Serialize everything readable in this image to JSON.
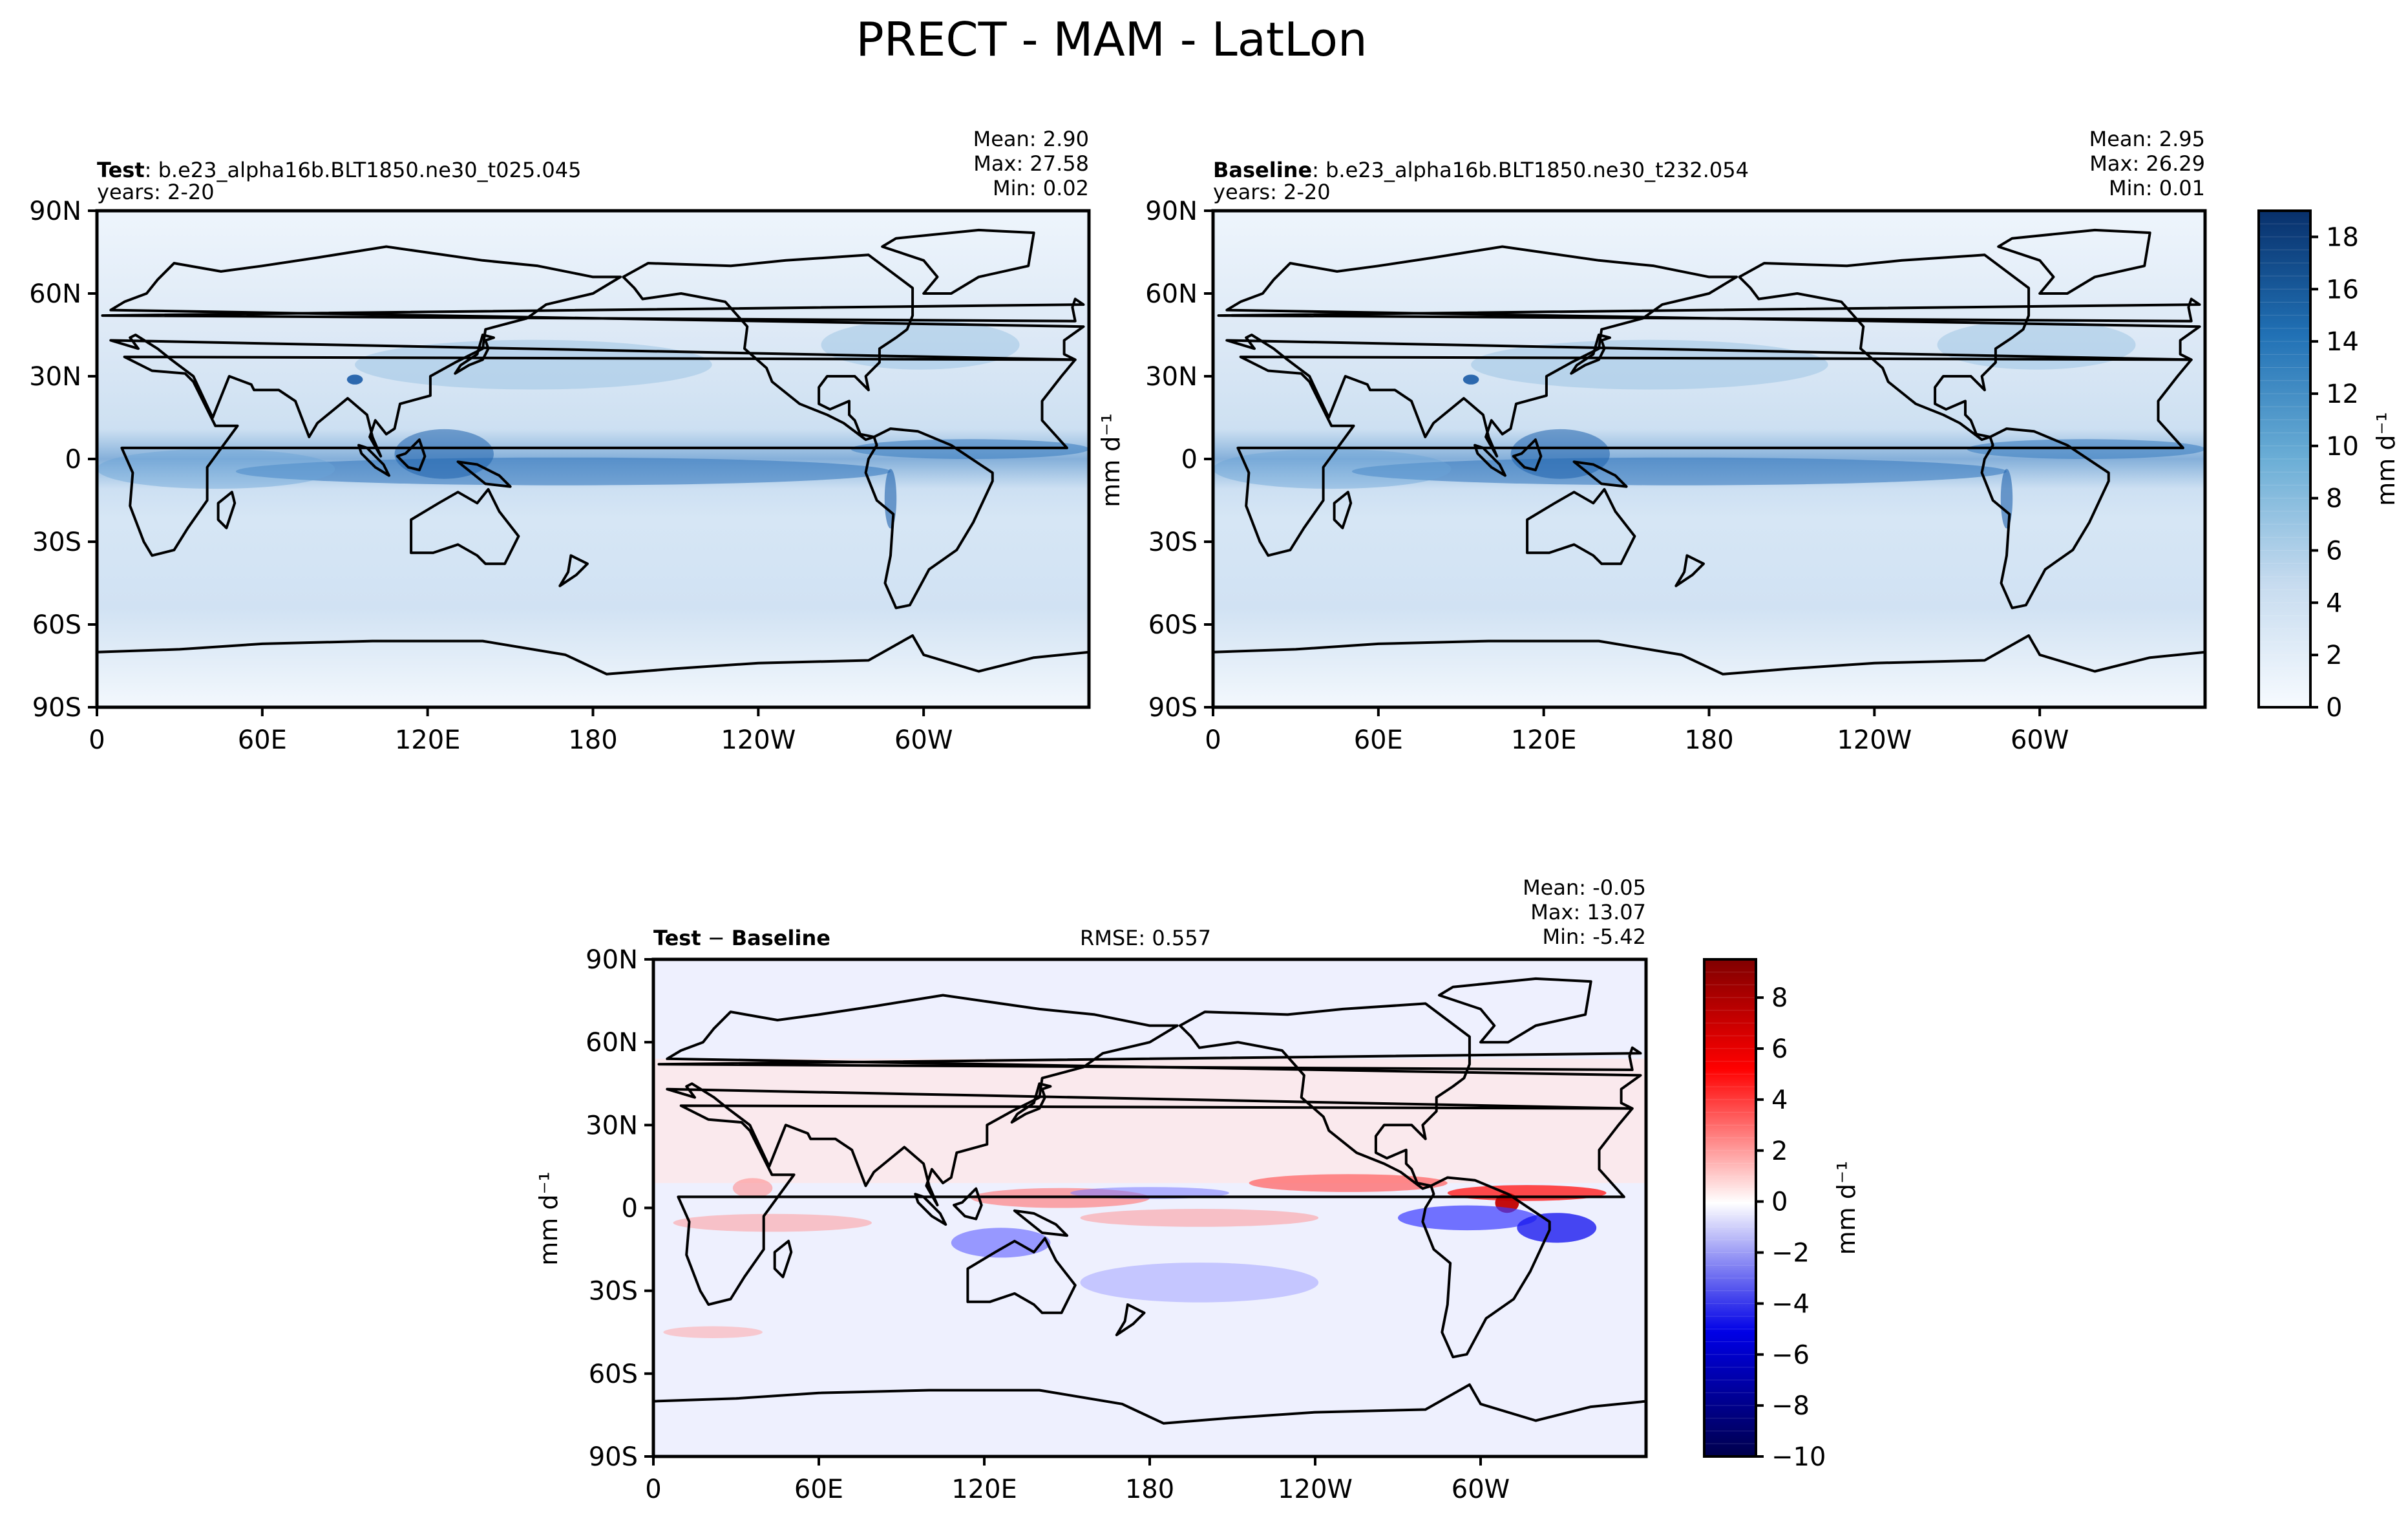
{
  "title": "PRECT - MAM - LatLon",
  "chart_data": [
    {
      "type": "heatmap",
      "panel": "test",
      "label_bold": "Test",
      "label_rest": ": b.e23_alpha16b.BLT1850.ne30_t025.045",
      "years": "years: 2-20",
      "stats": {
        "mean": "Mean:  2.90",
        "max": "Max: 27.58",
        "min": "Min:  0.02"
      },
      "x_ticks": [
        "0",
        "60E",
        "120E",
        "180",
        "120W",
        "60W"
      ],
      "y_ticks": [
        "90N",
        "60N",
        "30N",
        "0",
        "30S",
        "60S",
        "90S"
      ],
      "field": "precipitation"
    },
    {
      "type": "heatmap",
      "panel": "baseline",
      "label_bold": "Baseline",
      "label_rest": ": b.e23_alpha16b.BLT1850.ne30_t232.054",
      "years": "years: 2-20",
      "stats": {
        "mean": "Mean:  2.95",
        "max": "Max: 26.29",
        "min": "Min:  0.01"
      },
      "x_ticks": [
        "0",
        "60E",
        "120E",
        "180",
        "120W",
        "60W"
      ],
      "y_ticks": [
        "90N",
        "60N",
        "30N",
        "0",
        "30S",
        "60S",
        "90S"
      ],
      "field": "precipitation"
    },
    {
      "type": "heatmap",
      "panel": "difference",
      "label_bold": "Test",
      "label_mid": " − ",
      "label_bold2": "Baseline",
      "rmse": "RMSE: 0.557",
      "stats": {
        "mean": "Mean: -0.05",
        "max": "Max: 13.07",
        "min": "Min: -5.42"
      },
      "x_ticks": [
        "0",
        "60E",
        "120E",
        "180",
        "120W",
        "60W"
      ],
      "y_ticks": [
        "90N",
        "60N",
        "30N",
        "0",
        "30S",
        "60S",
        "90S"
      ],
      "field": "difference"
    }
  ],
  "colorbars": {
    "precip": {
      "label": "mm d⁻¹",
      "ticks": [
        "0",
        "2",
        "4",
        "6",
        "8",
        "10",
        "12",
        "14",
        "16",
        "18"
      ],
      "range": [
        0,
        19
      ],
      "colors": [
        "#f7fbff",
        "#08306b"
      ]
    },
    "diff": {
      "label": "mm d⁻¹",
      "ticks": [
        "−10",
        "−8",
        "−6",
        "−4",
        "−2",
        "0",
        "2",
        "4",
        "6",
        "8"
      ],
      "range": [
        -10,
        9.5
      ],
      "colors": [
        "#00004c",
        "#0000ff",
        "#ffffff",
        "#ff0000",
        "#800000"
      ]
    }
  },
  "shared_ylabel": "mm d⁻¹"
}
